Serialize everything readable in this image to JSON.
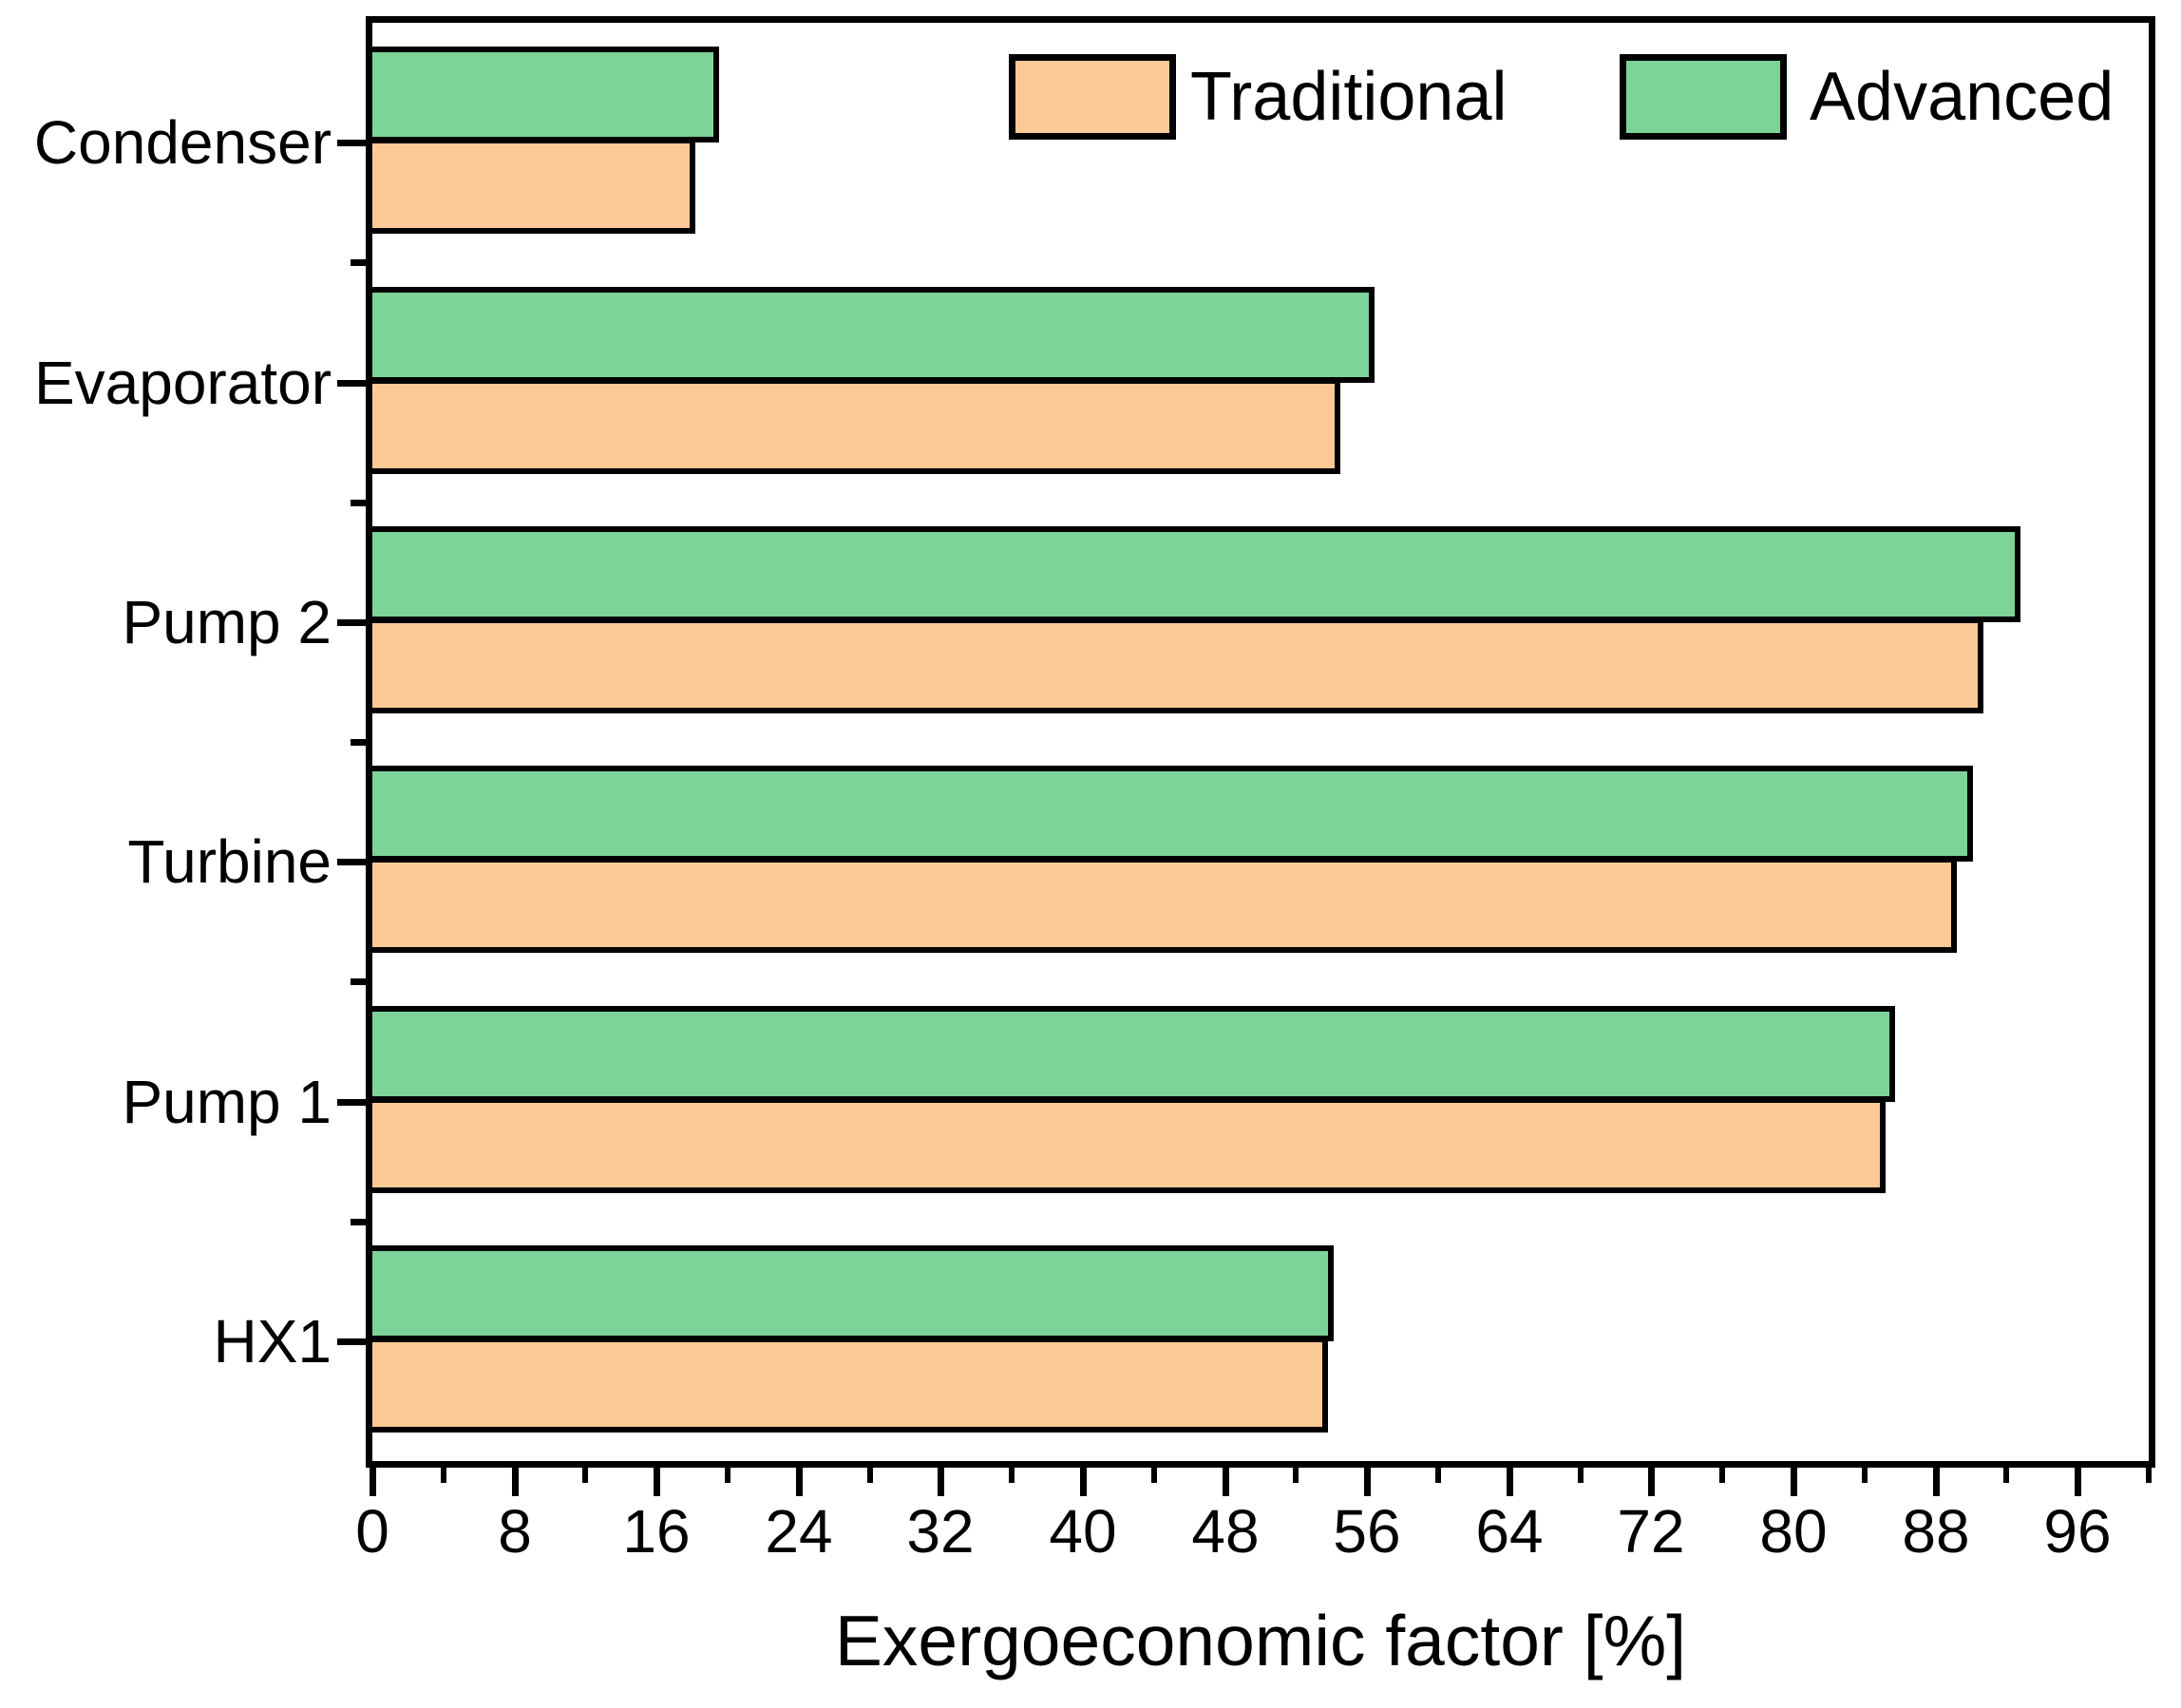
{
  "figure": {
    "background": "#ffffff",
    "axis_color": "#000000"
  },
  "legend": {
    "position": "top-inside",
    "items": [
      {
        "label": "Traditional",
        "color": "#FCCA96"
      },
      {
        "label": "Advanced",
        "color": "#7CD499"
      }
    ]
  },
  "xaxis": {
    "title": "Exergoeconomic factor [%]",
    "min": 0,
    "max": 100,
    "major_ticks": [
      0,
      8,
      16,
      24,
      32,
      40,
      48,
      56,
      64,
      72,
      80,
      88,
      96
    ],
    "minor_step": 4
  },
  "chart_data": {
    "type": "bar",
    "orientation": "horizontal",
    "title": "",
    "xlabel": "Exergoeconomic factor [%]",
    "ylabel": "",
    "xlim": [
      0,
      100
    ],
    "grid": false,
    "legend_position": "top-inside",
    "bar_border_color": "#000000",
    "categories": [
      "Condenser",
      "Evaporator",
      "Pump 2",
      "Turbine",
      "Pump 1",
      "HX1"
    ],
    "series": [
      {
        "name": "Advanced",
        "color": "#7CD499",
        "values": [
          19.5,
          56.4,
          92.8,
          90.1,
          85.7,
          54.1
        ]
      },
      {
        "name": "Traditional",
        "color": "#FCCA96",
        "values": [
          18.2,
          54.5,
          90.7,
          89.2,
          85.2,
          53.8
        ]
      }
    ]
  }
}
